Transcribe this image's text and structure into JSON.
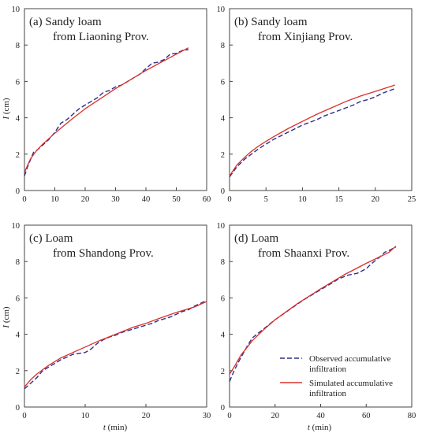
{
  "colors": {
    "observed": "#2b2f8a",
    "simulated": "#d9302b",
    "axis": "#444444"
  },
  "y_axis_label": {
    "symbol": "I",
    "unit": " (cm)"
  },
  "x_axis_label": {
    "symbol": "t",
    "unit": " (min)"
  },
  "legend": {
    "observed": [
      "Observed accumulative",
      "infiltration"
    ],
    "simulated": [
      "Simulated accumulative",
      "infiltration"
    ]
  },
  "chart_data": [
    {
      "type": "line",
      "title": [
        "(a)  Sandy loam",
        "from Liaoning Prov."
      ],
      "xlim": [
        0,
        60
      ],
      "xticks": [
        0,
        10,
        20,
        30,
        40,
        50,
        60
      ],
      "ylim": [
        0,
        10
      ],
      "yticks": [
        0,
        2,
        4,
        6,
        8,
        10
      ],
      "series": [
        {
          "name": "Observed accumulative infiltration",
          "style": "dashed",
          "x": [
            0,
            1,
            2,
            3,
            4,
            6,
            8,
            10,
            12,
            14,
            16,
            18,
            20,
            22,
            24,
            26,
            28,
            30,
            32,
            34,
            36,
            38,
            40,
            42,
            44,
            46,
            48,
            50,
            52,
            54
          ],
          "y": [
            0.8,
            1.3,
            1.7,
            2.1,
            2.2,
            2.5,
            2.8,
            3.2,
            3.7,
            3.9,
            4.2,
            4.5,
            4.7,
            4.9,
            5.1,
            5.4,
            5.5,
            5.7,
            5.8,
            6.0,
            6.2,
            6.4,
            6.7,
            7.0,
            7.05,
            7.2,
            7.5,
            7.55,
            7.7,
            7.75
          ]
        },
        {
          "name": "Simulated accumulative infiltration",
          "style": "solid",
          "x": [
            0,
            2,
            4,
            6,
            8,
            10,
            15,
            20,
            25,
            30,
            35,
            40,
            45,
            50,
            54
          ],
          "y": [
            1.0,
            1.75,
            2.2,
            2.55,
            2.85,
            3.15,
            3.85,
            4.5,
            5.05,
            5.6,
            6.1,
            6.6,
            7.05,
            7.5,
            7.85
          ]
        }
      ]
    },
    {
      "type": "line",
      "title": [
        "(b)  Sandy loam",
        "from Xinjiang Prov."
      ],
      "xlim": [
        0,
        25
      ],
      "xticks": [
        0,
        5,
        10,
        15,
        20,
        25
      ],
      "ylim": [
        0,
        10
      ],
      "yticks": [
        0,
        2,
        4,
        6,
        8,
        10
      ],
      "series": [
        {
          "name": "Observed accumulative infiltration",
          "style": "dashed",
          "x": [
            0,
            1,
            2,
            3,
            4,
            5,
            6,
            7,
            8,
            9,
            10,
            11,
            12,
            13,
            14,
            15,
            16,
            17,
            18,
            19,
            20,
            21,
            22,
            22.7
          ],
          "y": [
            0.75,
            1.3,
            1.7,
            2.0,
            2.3,
            2.55,
            2.8,
            3.0,
            3.2,
            3.4,
            3.6,
            3.75,
            3.9,
            4.1,
            4.25,
            4.4,
            4.55,
            4.7,
            4.9,
            5.0,
            5.15,
            5.35,
            5.5,
            5.6
          ]
        },
        {
          "name": "Simulated accumulative infiltration",
          "style": "solid",
          "x": [
            0,
            1,
            2,
            3,
            4,
            5,
            6,
            8,
            10,
            12,
            14,
            16,
            18,
            20,
            22.7
          ],
          "y": [
            0.8,
            1.4,
            1.8,
            2.15,
            2.45,
            2.7,
            2.95,
            3.4,
            3.8,
            4.2,
            4.55,
            4.9,
            5.2,
            5.45,
            5.8
          ]
        }
      ]
    },
    {
      "type": "line",
      "title": [
        "(c)  Loam",
        "from Shandong Prov."
      ],
      "xlim": [
        0,
        30
      ],
      "xticks": [
        0,
        10,
        20,
        30
      ],
      "ylim": [
        0,
        10
      ],
      "yticks": [
        0,
        2,
        4,
        6,
        8,
        10
      ],
      "series": [
        {
          "name": "Observed accumulative infiltration",
          "style": "dashed",
          "x": [
            0,
            1,
            2,
            3,
            4,
            5,
            6,
            7,
            8,
            9,
            10,
            11,
            12,
            13,
            14,
            15,
            16,
            17,
            18,
            19,
            20,
            21,
            22,
            23,
            24,
            25,
            26,
            27,
            28,
            29,
            30
          ],
          "y": [
            1.0,
            1.3,
            1.6,
            2.0,
            2.2,
            2.4,
            2.6,
            2.75,
            2.9,
            2.95,
            3.0,
            3.2,
            3.5,
            3.7,
            3.85,
            3.95,
            4.1,
            4.2,
            4.3,
            4.4,
            4.5,
            4.6,
            4.75,
            4.85,
            4.95,
            5.1,
            5.25,
            5.35,
            5.55,
            5.7,
            5.85
          ]
        },
        {
          "name": "Simulated accumulative infiltration",
          "style": "solid",
          "x": [
            0,
            1,
            2,
            3,
            4,
            5,
            6,
            8,
            10,
            12,
            15,
            18,
            20,
            22,
            25,
            28,
            30
          ],
          "y": [
            1.1,
            1.5,
            1.8,
            2.05,
            2.3,
            2.5,
            2.7,
            3.0,
            3.3,
            3.6,
            4.0,
            4.4,
            4.6,
            4.85,
            5.2,
            5.5,
            5.8
          ]
        }
      ]
    },
    {
      "type": "line",
      "title": [
        "(d)  Loam",
        "from Shaanxi Prov."
      ],
      "xlim": [
        0,
        80
      ],
      "xticks": [
        0,
        20,
        40,
        60,
        80
      ],
      "ylim": [
        0,
        10
      ],
      "yticks": [
        0,
        2,
        4,
        6,
        8,
        10
      ],
      "series": [
        {
          "name": "Observed accumulative infiltration",
          "style": "dashed",
          "x": [
            0,
            2,
            4,
            6,
            8,
            10,
            12,
            14,
            16,
            18,
            20,
            24,
            28,
            32,
            36,
            40,
            44,
            48,
            52,
            56,
            60,
            62,
            64,
            66,
            68,
            70,
            73
          ],
          "y": [
            1.4,
            2.0,
            2.5,
            2.95,
            3.4,
            3.8,
            4.0,
            4.2,
            4.4,
            4.6,
            4.8,
            5.15,
            5.5,
            5.85,
            6.15,
            6.45,
            6.75,
            7.05,
            7.25,
            7.35,
            7.6,
            7.85,
            8.05,
            8.25,
            8.5,
            8.6,
            8.8
          ]
        },
        {
          "name": "Simulated accumulative infiltration",
          "style": "solid",
          "x": [
            0,
            2,
            5,
            10,
            15,
            20,
            25,
            30,
            40,
            50,
            60,
            70,
            73
          ],
          "y": [
            1.8,
            2.2,
            2.85,
            3.65,
            4.25,
            4.8,
            5.25,
            5.7,
            6.5,
            7.25,
            7.9,
            8.5,
            8.85
          ]
        }
      ]
    }
  ]
}
